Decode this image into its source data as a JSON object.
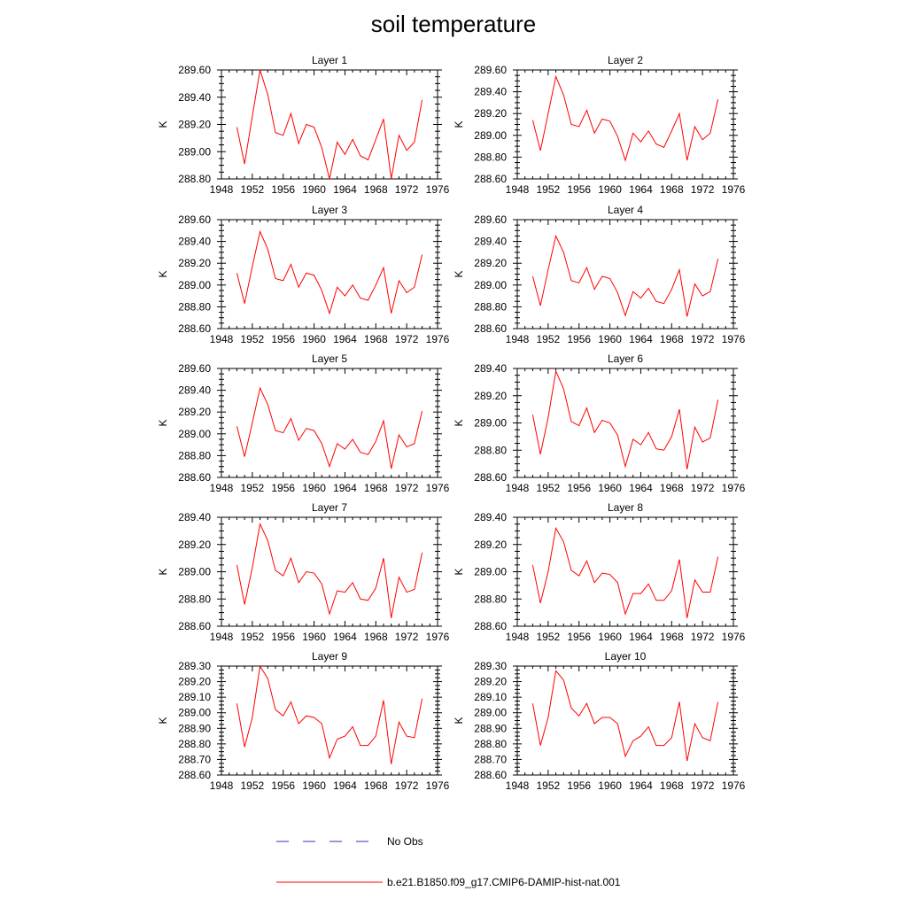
{
  "title": "soil temperature",
  "legend": {
    "position": "bottom",
    "items": [
      {
        "label": "No Obs",
        "color": "#3030c0",
        "dash": "dashed"
      },
      {
        "label": "b.e21.B1850.f09_g17.CMIP6-DAMIP-hist-nat.001",
        "color": "#ff0000",
        "dash": "solid"
      }
    ]
  },
  "chart_data": [
    {
      "type": "line",
      "title": "Layer 1",
      "ylabel": "K",
      "xlim": [
        1948,
        1976
      ],
      "ylim": [
        288.8,
        289.6
      ],
      "xticks": [
        1948,
        1952,
        1956,
        1960,
        1964,
        1968,
        1972,
        1976
      ],
      "yticks": [
        "288.80",
        "289.00",
        "289.20",
        "289.40",
        "289.60"
      ],
      "ytickvals": [
        288.8,
        289.0,
        289.2,
        289.4,
        289.6
      ],
      "x": [
        1950,
        1951,
        1952,
        1953,
        1954,
        1955,
        1956,
        1957,
        1958,
        1959,
        1960,
        1961,
        1962,
        1963,
        1964,
        1965,
        1966,
        1967,
        1968,
        1969,
        1970,
        1971,
        1972,
        1973,
        1974
      ],
      "series": [
        {
          "name": "b.e21.B1850.f09_g17.CMIP6-DAMIP-hist-nat.001",
          "color": "#ff0000",
          "values": [
            289.18,
            288.91,
            289.26,
            289.6,
            289.42,
            289.14,
            289.12,
            289.28,
            289.06,
            289.2,
            289.18,
            289.03,
            288.8,
            289.07,
            288.98,
            289.09,
            288.97,
            288.94,
            289.09,
            289.24,
            288.8,
            289.12,
            289.01,
            289.07,
            289.38
          ]
        }
      ]
    },
    {
      "type": "line",
      "title": "Layer 2",
      "ylabel": "K",
      "xlim": [
        1948,
        1976
      ],
      "ylim": [
        288.6,
        289.6
      ],
      "xticks": [
        1948,
        1952,
        1956,
        1960,
        1964,
        1968,
        1972,
        1976
      ],
      "yticks": [
        "288.60",
        "288.80",
        "289.00",
        "289.20",
        "289.40",
        "289.60"
      ],
      "ytickvals": [
        288.6,
        288.8,
        289.0,
        289.2,
        289.4,
        289.6
      ],
      "x": [
        1950,
        1951,
        1952,
        1953,
        1954,
        1955,
        1956,
        1957,
        1958,
        1959,
        1960,
        1961,
        1962,
        1963,
        1964,
        1965,
        1966,
        1967,
        1968,
        1969,
        1970,
        1971,
        1972,
        1973,
        1974
      ],
      "series": [
        {
          "name": "b.e21.B1850.f09_g17.CMIP6-DAMIP-hist-nat.001",
          "color": "#ff0000",
          "values": [
            289.14,
            288.86,
            289.2,
            289.54,
            289.37,
            289.1,
            289.08,
            289.23,
            289.02,
            289.15,
            289.13,
            288.99,
            288.77,
            289.02,
            288.94,
            289.04,
            288.92,
            288.89,
            289.04,
            289.2,
            288.77,
            289.08,
            288.96,
            289.02,
            289.33
          ]
        }
      ]
    },
    {
      "type": "line",
      "title": "Layer 3",
      "ylabel": "K",
      "xlim": [
        1948,
        1976
      ],
      "ylim": [
        288.6,
        289.6
      ],
      "xticks": [
        1948,
        1952,
        1956,
        1960,
        1964,
        1968,
        1972,
        1976
      ],
      "yticks": [
        "288.60",
        "288.80",
        "289.00",
        "289.20",
        "289.40",
        "289.60"
      ],
      "ytickvals": [
        288.6,
        288.8,
        289.0,
        289.2,
        289.4,
        289.6
      ],
      "x": [
        1950,
        1951,
        1952,
        1953,
        1954,
        1955,
        1956,
        1957,
        1958,
        1959,
        1960,
        1961,
        1962,
        1963,
        1964,
        1965,
        1966,
        1967,
        1968,
        1969,
        1970,
        1971,
        1972,
        1973,
        1974
      ],
      "series": [
        {
          "name": "b.e21.B1850.f09_g17.CMIP6-DAMIP-hist-nat.001",
          "color": "#ff0000",
          "values": [
            289.11,
            288.83,
            289.17,
            289.49,
            289.33,
            289.06,
            289.04,
            289.19,
            288.98,
            289.11,
            289.09,
            288.95,
            288.74,
            288.98,
            288.9,
            289.0,
            288.88,
            288.86,
            289.0,
            289.16,
            288.74,
            289.04,
            288.93,
            288.98,
            289.28
          ]
        }
      ]
    },
    {
      "type": "line",
      "title": "Layer 4",
      "ylabel": "K",
      "xlim": [
        1948,
        1976
      ],
      "ylim": [
        288.6,
        289.6
      ],
      "xticks": [
        1948,
        1952,
        1956,
        1960,
        1964,
        1968,
        1972,
        1976
      ],
      "yticks": [
        "288.60",
        "288.80",
        "289.00",
        "289.20",
        "289.40",
        "289.60"
      ],
      "ytickvals": [
        288.6,
        288.8,
        289.0,
        289.2,
        289.4,
        289.6
      ],
      "x": [
        1950,
        1951,
        1952,
        1953,
        1954,
        1955,
        1956,
        1957,
        1958,
        1959,
        1960,
        1961,
        1962,
        1963,
        1964,
        1965,
        1966,
        1967,
        1968,
        1969,
        1970,
        1971,
        1972,
        1973,
        1974
      ],
      "series": [
        {
          "name": "b.e21.B1850.f09_g17.CMIP6-DAMIP-hist-nat.001",
          "color": "#ff0000",
          "values": [
            289.08,
            288.81,
            289.14,
            289.45,
            289.3,
            289.04,
            289.02,
            289.16,
            288.96,
            289.08,
            289.06,
            288.93,
            288.72,
            288.94,
            288.88,
            288.97,
            288.85,
            288.83,
            288.96,
            289.14,
            288.71,
            289.01,
            288.9,
            288.94,
            289.24
          ]
        }
      ]
    },
    {
      "type": "line",
      "title": "Layer 5",
      "ylabel": "K",
      "xlim": [
        1948,
        1976
      ],
      "ylim": [
        288.6,
        289.6
      ],
      "xticks": [
        1948,
        1952,
        1956,
        1960,
        1964,
        1968,
        1972,
        1976
      ],
      "yticks": [
        "288.60",
        "288.80",
        "289.00",
        "289.20",
        "289.40",
        "289.60"
      ],
      "ytickvals": [
        288.6,
        288.8,
        289.0,
        289.2,
        289.4,
        289.6
      ],
      "x": [
        1950,
        1951,
        1952,
        1953,
        1954,
        1955,
        1956,
        1957,
        1958,
        1959,
        1960,
        1961,
        1962,
        1963,
        1964,
        1965,
        1966,
        1967,
        1968,
        1969,
        1970,
        1971,
        1972,
        1973,
        1974
      ],
      "series": [
        {
          "name": "b.e21.B1850.f09_g17.CMIP6-DAMIP-hist-nat.001",
          "color": "#ff0000",
          "values": [
            289.07,
            288.79,
            289.1,
            289.42,
            289.27,
            289.03,
            289.01,
            289.14,
            288.94,
            289.05,
            289.03,
            288.91,
            288.7,
            288.91,
            288.86,
            288.95,
            288.83,
            288.81,
            288.93,
            289.12,
            288.68,
            288.99,
            288.88,
            288.91,
            289.21
          ]
        }
      ]
    },
    {
      "type": "line",
      "title": "Layer 6",
      "ylabel": "K",
      "xlim": [
        1948,
        1976
      ],
      "ylim": [
        288.6,
        289.4
      ],
      "xticks": [
        1948,
        1952,
        1956,
        1960,
        1964,
        1968,
        1972,
        1976
      ],
      "yticks": [
        "288.60",
        "288.80",
        "289.00",
        "289.20",
        "289.40"
      ],
      "ytickvals": [
        288.6,
        288.8,
        289.0,
        289.2,
        289.4
      ],
      "x": [
        1950,
        1951,
        1952,
        1953,
        1954,
        1955,
        1956,
        1957,
        1958,
        1959,
        1960,
        1961,
        1962,
        1963,
        1964,
        1965,
        1966,
        1967,
        1968,
        1969,
        1970,
        1971,
        1972,
        1973,
        1974
      ],
      "series": [
        {
          "name": "b.e21.B1850.f09_g17.CMIP6-DAMIP-hist-nat.001",
          "color": "#ff0000",
          "values": [
            289.06,
            288.77,
            289.04,
            289.38,
            289.25,
            289.01,
            288.98,
            289.11,
            288.93,
            289.02,
            289.0,
            288.91,
            288.68,
            288.88,
            288.84,
            288.93,
            288.81,
            288.8,
            288.9,
            289.1,
            288.66,
            288.97,
            288.86,
            288.89,
            289.17
          ]
        }
      ]
    },
    {
      "type": "line",
      "title": "Layer 7",
      "ylabel": "K",
      "xlim": [
        1948,
        1976
      ],
      "ylim": [
        288.6,
        289.4
      ],
      "xticks": [
        1948,
        1952,
        1956,
        1960,
        1964,
        1968,
        1972,
        1976
      ],
      "yticks": [
        "288.60",
        "288.80",
        "289.00",
        "289.20",
        "289.40"
      ],
      "ytickvals": [
        288.6,
        288.8,
        289.0,
        289.2,
        289.4
      ],
      "x": [
        1950,
        1951,
        1952,
        1953,
        1954,
        1955,
        1956,
        1957,
        1958,
        1959,
        1960,
        1961,
        1962,
        1963,
        1964,
        1965,
        1966,
        1967,
        1968,
        1969,
        1970,
        1971,
        1972,
        1973,
        1974
      ],
      "series": [
        {
          "name": "b.e21.B1850.f09_g17.CMIP6-DAMIP-hist-nat.001",
          "color": "#ff0000",
          "values": [
            289.05,
            288.76,
            289.03,
            289.35,
            289.23,
            289.01,
            288.97,
            289.1,
            288.92,
            289.0,
            288.99,
            288.91,
            288.69,
            288.86,
            288.85,
            288.92,
            288.8,
            288.79,
            288.88,
            289.1,
            288.66,
            288.96,
            288.85,
            288.87,
            289.14
          ]
        }
      ]
    },
    {
      "type": "line",
      "title": "Layer 8",
      "ylabel": "K",
      "xlim": [
        1948,
        1976
      ],
      "ylim": [
        288.6,
        289.4
      ],
      "xticks": [
        1948,
        1952,
        1956,
        1960,
        1964,
        1968,
        1972,
        1976
      ],
      "yticks": [
        "288.60",
        "288.80",
        "289.00",
        "289.20",
        "289.40"
      ],
      "ytickvals": [
        288.6,
        288.8,
        289.0,
        289.2,
        289.4
      ],
      "x": [
        1950,
        1951,
        1952,
        1953,
        1954,
        1955,
        1956,
        1957,
        1958,
        1959,
        1960,
        1961,
        1962,
        1963,
        1964,
        1965,
        1966,
        1967,
        1968,
        1969,
        1970,
        1971,
        1972,
        1973,
        1974
      ],
      "series": [
        {
          "name": "b.e21.B1850.f09_g17.CMIP6-DAMIP-hist-nat.001",
          "color": "#ff0000",
          "values": [
            289.05,
            288.77,
            289.0,
            289.32,
            289.22,
            289.01,
            288.97,
            289.08,
            288.92,
            288.99,
            288.98,
            288.92,
            288.69,
            288.84,
            288.84,
            288.91,
            288.79,
            288.79,
            288.86,
            289.09,
            288.66,
            288.94,
            288.85,
            288.85,
            289.11
          ]
        }
      ]
    },
    {
      "type": "line",
      "title": "Layer 9",
      "ylabel": "K",
      "xlim": [
        1948,
        1976
      ],
      "ylim": [
        288.6,
        289.3
      ],
      "xticks": [
        1948,
        1952,
        1956,
        1960,
        1964,
        1968,
        1972,
        1976
      ],
      "yticks": [
        "288.60",
        "288.70",
        "288.80",
        "288.90",
        "289.00",
        "289.10",
        "289.20",
        "289.30"
      ],
      "ytickvals": [
        288.6,
        288.7,
        288.8,
        288.9,
        289.0,
        289.1,
        289.2,
        289.3
      ],
      "x": [
        1950,
        1951,
        1952,
        1953,
        1954,
        1955,
        1956,
        1957,
        1958,
        1959,
        1960,
        1961,
        1962,
        1963,
        1964,
        1965,
        1966,
        1967,
        1968,
        1969,
        1970,
        1971,
        1972,
        1973,
        1974
      ],
      "series": [
        {
          "name": "b.e21.B1850.f09_g17.CMIP6-DAMIP-hist-nat.001",
          "color": "#ff0000",
          "values": [
            289.06,
            288.78,
            288.97,
            289.3,
            289.22,
            289.02,
            288.98,
            289.07,
            288.93,
            288.98,
            288.97,
            288.93,
            288.71,
            288.83,
            288.85,
            288.91,
            288.79,
            288.79,
            288.85,
            289.08,
            288.67,
            288.94,
            288.85,
            288.84,
            289.09
          ]
        }
      ]
    },
    {
      "type": "line",
      "title": "Layer 10",
      "ylabel": "K",
      "xlim": [
        1948,
        1976
      ],
      "ylim": [
        288.6,
        289.3
      ],
      "xticks": [
        1948,
        1952,
        1956,
        1960,
        1964,
        1968,
        1972,
        1976
      ],
      "yticks": [
        "288.60",
        "288.70",
        "288.80",
        "288.90",
        "289.00",
        "289.10",
        "289.20",
        "289.30"
      ],
      "ytickvals": [
        288.6,
        288.7,
        288.8,
        288.9,
        289.0,
        289.1,
        289.2,
        289.3
      ],
      "x": [
        1950,
        1951,
        1952,
        1953,
        1954,
        1955,
        1956,
        1957,
        1958,
        1959,
        1960,
        1961,
        1962,
        1963,
        1964,
        1965,
        1966,
        1967,
        1968,
        1969,
        1970,
        1971,
        1972,
        1973,
        1974
      ],
      "series": [
        {
          "name": "b.e21.B1850.f09_g17.CMIP6-DAMIP-hist-nat.001",
          "color": "#ff0000",
          "values": [
            289.06,
            288.79,
            288.97,
            289.27,
            289.21,
            289.03,
            288.98,
            289.06,
            288.93,
            288.97,
            288.97,
            288.93,
            288.72,
            288.82,
            288.85,
            288.91,
            288.79,
            288.79,
            288.84,
            289.07,
            288.69,
            288.93,
            288.84,
            288.82,
            289.07
          ]
        }
      ]
    }
  ]
}
